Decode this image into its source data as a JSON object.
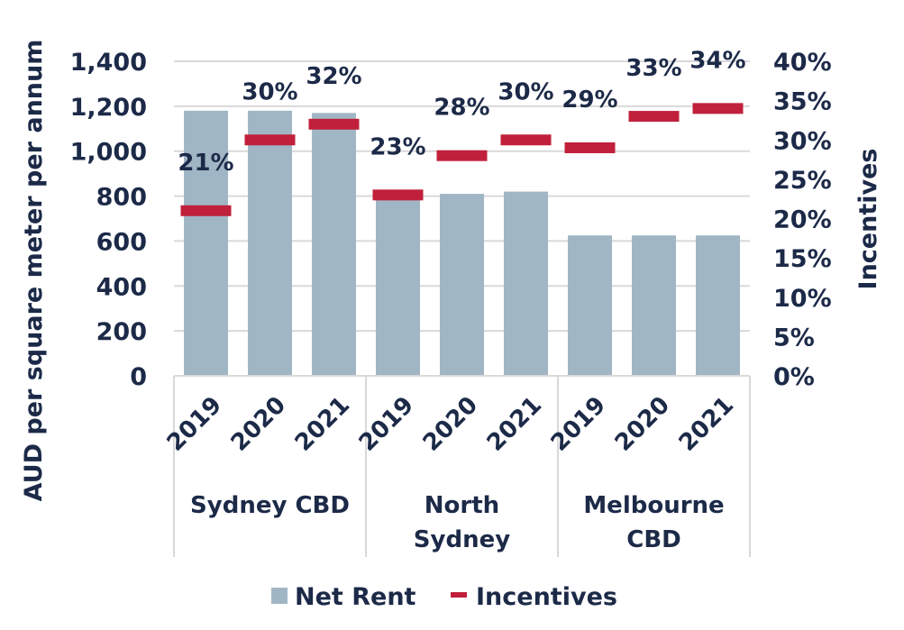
{
  "chart_data": {
    "type": "bar",
    "categories": [
      "2019",
      "2020",
      "2021",
      "2019",
      "2020",
      "2021",
      "2019",
      "2020",
      "2021"
    ],
    "groups": [
      {
        "label_lines": [
          "Sydney CBD"
        ]
      },
      {
        "label_lines": [
          "North",
          "Sydney"
        ]
      },
      {
        "label_lines": [
          "Melbourne",
          "CBD"
        ]
      }
    ],
    "series": [
      {
        "name": "Net Rent",
        "type": "bar",
        "axis": "left",
        "color": "#a1b6c5",
        "values": [
          1180,
          1180,
          1170,
          800,
          810,
          820,
          625,
          625,
          625
        ]
      },
      {
        "name": "Incentives",
        "type": "marker",
        "axis": "right",
        "color": "#c0203b",
        "values": [
          21,
          30,
          32,
          23,
          28,
          30,
          29,
          33,
          34
        ],
        "labels": [
          "21%",
          "30%",
          "32%",
          "23%",
          "28%",
          "30%",
          "29%",
          "33%",
          "34%"
        ]
      }
    ],
    "ylabel": "AUD per square meter per annum",
    "y2label": "Incentives",
    "ylim": [
      0,
      1400
    ],
    "y2lim": [
      0,
      40
    ],
    "yticks": [
      "0",
      "200",
      "400",
      "600",
      "800",
      "1,000",
      "1,200",
      "1,400"
    ],
    "y2ticks": [
      "0%",
      "5%",
      "10%",
      "15%",
      "20%",
      "25%",
      "30%",
      "35%",
      "40%"
    ],
    "grid": true,
    "legend_position": "bottom"
  }
}
